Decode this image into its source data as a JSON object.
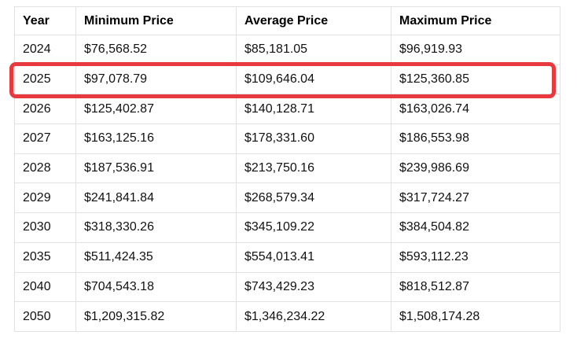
{
  "table": {
    "columns": [
      {
        "key": "year",
        "label": "Year"
      },
      {
        "key": "min",
        "label": "Minimum Price"
      },
      {
        "key": "avg",
        "label": "Average Price"
      },
      {
        "key": "max",
        "label": "Maximum Price"
      }
    ],
    "rows": [
      {
        "year": "2024",
        "min": "$76,568.52",
        "avg": "$85,181.05",
        "max": "$96,919.93",
        "highlighted": false
      },
      {
        "year": "2025",
        "min": "$97,078.79",
        "avg": "$109,646.04",
        "max": "$125,360.85",
        "highlighted": true
      },
      {
        "year": "2026",
        "min": "$125,402.87",
        "avg": "$140,128.71",
        "max": "$163,026.74",
        "highlighted": false
      },
      {
        "year": "2027",
        "min": "$163,125.16",
        "avg": "$178,331.60",
        "max": "$186,553.98",
        "highlighted": false
      },
      {
        "year": "2028",
        "min": "$187,536.91",
        "avg": "$213,750.16",
        "max": "$239,986.69",
        "highlighted": false
      },
      {
        "year": "2029",
        "min": "$241,841.84",
        "avg": "$268,579.34",
        "max": "$317,724.27",
        "highlighted": false
      },
      {
        "year": "2030",
        "min": "$318,330.26",
        "avg": "$345,109.22",
        "max": "$384,504.82",
        "highlighted": false
      },
      {
        "year": "2035",
        "min": "$511,424.35",
        "avg": "$554,013.41",
        "max": "$593,112.23",
        "highlighted": false
      },
      {
        "year": "2040",
        "min": "$704,543.18",
        "avg": "$743,429.23",
        "max": "$818,512.87",
        "highlighted": false
      },
      {
        "year": "2050",
        "min": "$1,209,315.82",
        "avg": "$1,346,234.22",
        "max": "$1,508,174.28",
        "highlighted": false
      }
    ],
    "highlight": {
      "row_year": "2025",
      "border_color": "#e8393f"
    },
    "grid_color": "#e2e2e2"
  }
}
